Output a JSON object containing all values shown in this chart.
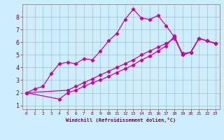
{
  "xlabel": "Windchill (Refroidissement éolien,°C)",
  "background_color": "#cceeff",
  "grid_color": "#999999",
  "line_color": "#cc00aa",
  "xlim": [
    -0.5,
    23.5
  ],
  "ylim": [
    0.7,
    9.0
  ],
  "xticks": [
    0,
    1,
    2,
    3,
    4,
    5,
    6,
    7,
    8,
    9,
    10,
    11,
    12,
    13,
    14,
    15,
    16,
    17,
    18,
    19,
    20,
    21,
    22,
    23
  ],
  "yticks": [
    1,
    2,
    3,
    4,
    5,
    6,
    7,
    8
  ],
  "line1_x": [
    0,
    1,
    2,
    3,
    4,
    5,
    6,
    7,
    8,
    9,
    10,
    11,
    12,
    13,
    14,
    15,
    16,
    17,
    18,
    19,
    20,
    21,
    22,
    23
  ],
  "line1_y": [
    2.0,
    2.3,
    2.5,
    3.5,
    4.3,
    4.4,
    4.3,
    4.7,
    4.6,
    5.3,
    6.1,
    6.7,
    7.8,
    8.6,
    7.9,
    7.8,
    8.1,
    7.3,
    6.4,
    5.0,
    5.2,
    6.3,
    6.1,
    5.9
  ],
  "line2_x": [
    0,
    5,
    6,
    7,
    8,
    9,
    10,
    11,
    12,
    13,
    14,
    15,
    16,
    17,
    18,
    19,
    20,
    21,
    22,
    23
  ],
  "line2_y": [
    2.0,
    2.2,
    2.5,
    2.8,
    3.1,
    3.4,
    3.7,
    4.0,
    4.3,
    4.6,
    5.0,
    5.3,
    5.6,
    5.9,
    6.3,
    5.1,
    5.2,
    6.3,
    6.1,
    5.9
  ],
  "line3_x": [
    0,
    4,
    5,
    6,
    7,
    8,
    9,
    10,
    11,
    12,
    13,
    14,
    15,
    16,
    17,
    18,
    19,
    20,
    21,
    22,
    23
  ],
  "line3_y": [
    2.0,
    1.5,
    2.0,
    2.2,
    2.5,
    2.8,
    3.0,
    3.3,
    3.6,
    3.9,
    4.2,
    4.6,
    4.9,
    5.3,
    5.7,
    6.5,
    5.0,
    5.2,
    6.3,
    6.1,
    5.9
  ]
}
